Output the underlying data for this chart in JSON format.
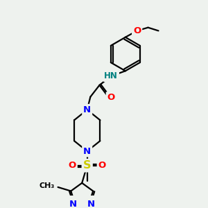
{
  "bg_color": "#eef2ee",
  "bond_color": "#000000",
  "bond_width": 1.6,
  "atom_colors": {
    "N": "#0000ff",
    "O": "#ff0000",
    "S": "#cccc00",
    "H": "#008080",
    "C": "#000000"
  },
  "font_size": 8.5,
  "fig_size": [
    3.0,
    3.0
  ],
  "dpi": 100
}
